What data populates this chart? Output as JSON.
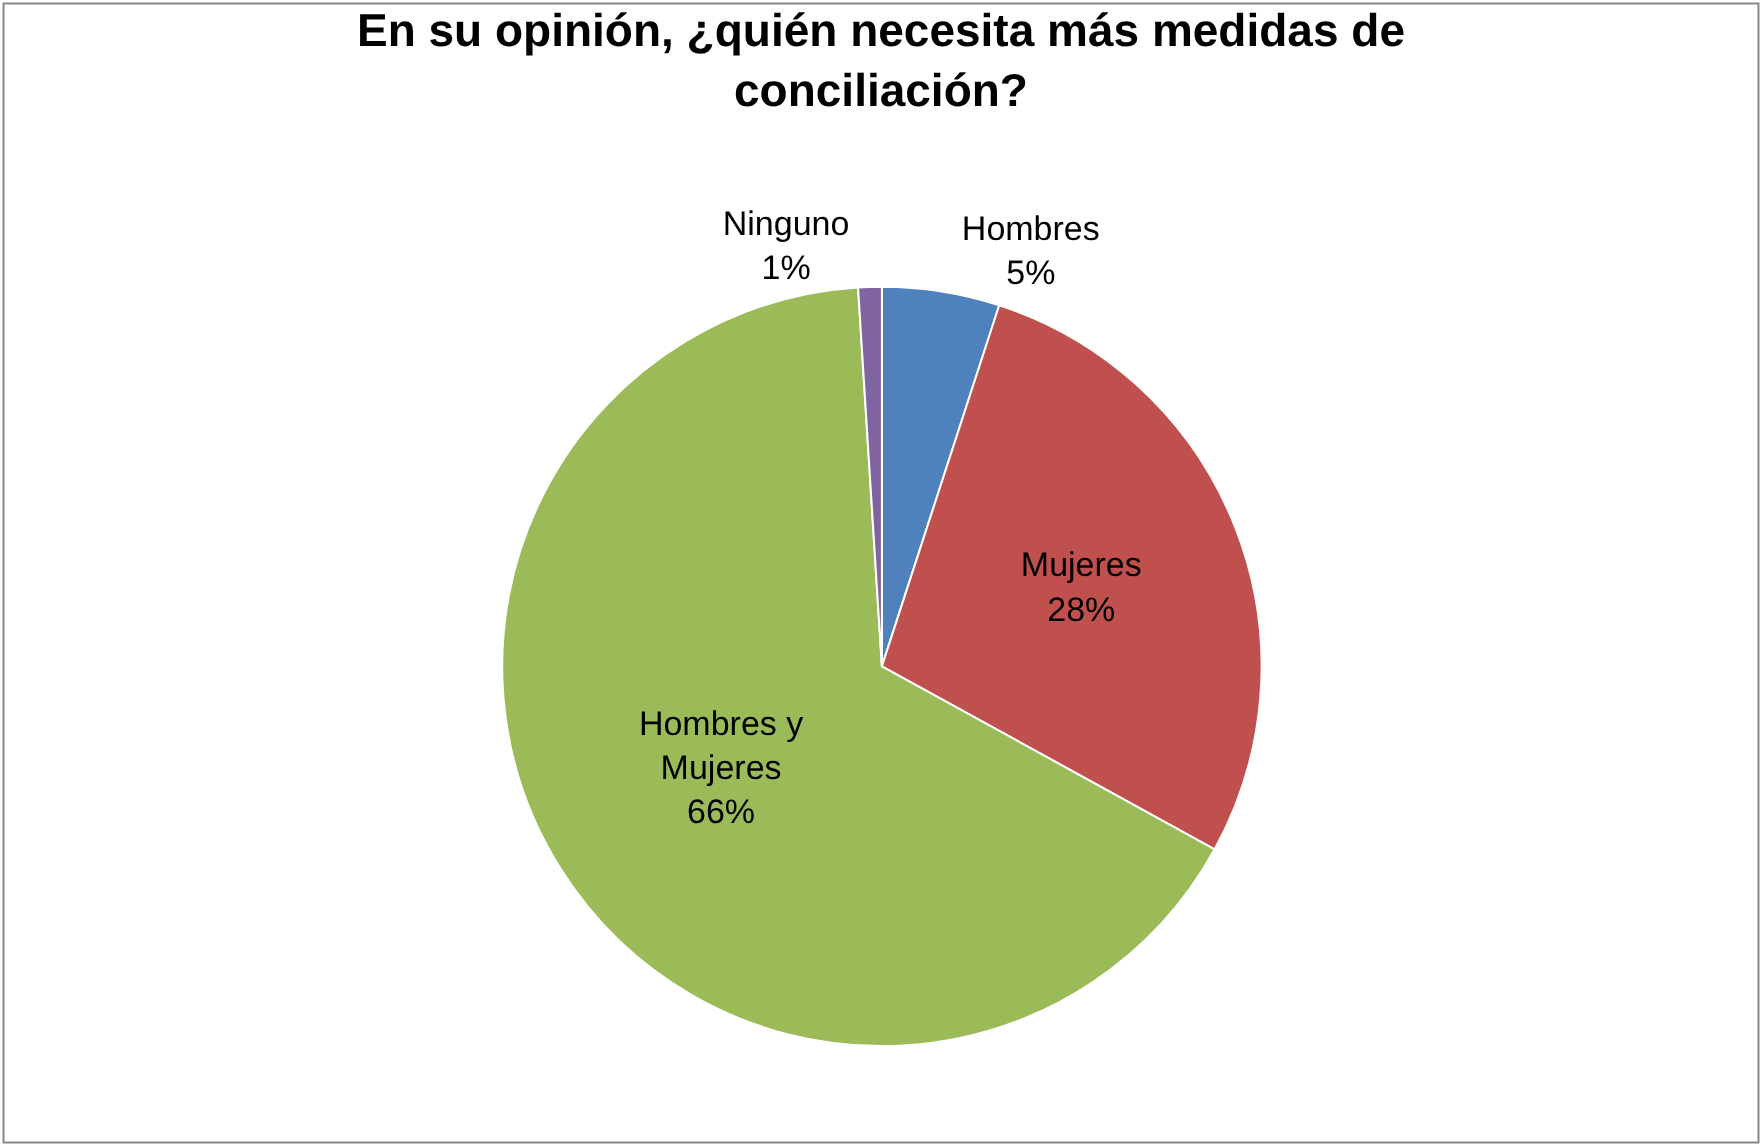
{
  "chart_data": {
    "type": "pie",
    "title": "En su opinión, ¿quién necesita más medidas de conciliación?",
    "categories": [
      "Hombres",
      "Mujeres",
      "Hombres y Mujeres",
      "Ninguno"
    ],
    "values": [
      5,
      28,
      66,
      1
    ],
    "value_labels": [
      "5%",
      "28%",
      "66%",
      "1%"
    ],
    "colors": [
      "#4f81bd",
      "#c0504d",
      "#9bbb59",
      "#8064a2"
    ],
    "legend": false
  }
}
